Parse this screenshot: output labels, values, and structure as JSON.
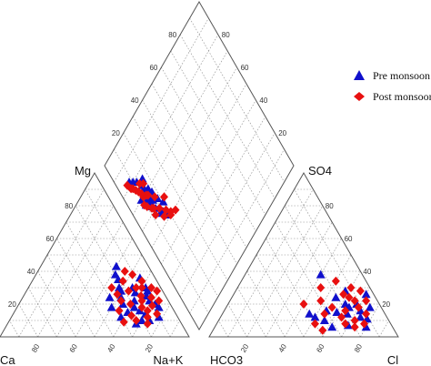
{
  "chart_data": {
    "type": "scatter",
    "subtype": "piper-diagram",
    "axis_names": {
      "mg": "Mg",
      "so4": "SO4",
      "ca": "Ca",
      "nak": "Na+K",
      "hco3": "HCO3",
      "cl": "Cl"
    },
    "ticks": {
      "cation_left": [
        "20",
        "40",
        "60",
        "80"
      ],
      "cation_bottom": [
        "80",
        "60",
        "40",
        "20"
      ],
      "anion_right": [
        "20",
        "40",
        "60",
        "80"
      ],
      "anion_bottom": [
        "20",
        "40",
        "60",
        "80"
      ],
      "diamond_left": [
        "20",
        "40",
        "60",
        "80"
      ],
      "diamond_right": [
        "20",
        "40",
        "60",
        "80"
      ]
    },
    "grid": true,
    "legend_position": "top-right",
    "series": [
      {
        "name": "Pre monsoon",
        "color": "#1010cc",
        "marker": "triangle",
        "cations": [
          [
            78,
            12
          ],
          [
            65,
            25
          ],
          [
            60,
            22
          ],
          [
            55,
            30
          ],
          [
            50,
            28
          ],
          [
            62,
            18
          ],
          [
            40,
            43
          ],
          [
            70,
            10
          ],
          [
            45,
            35
          ],
          [
            58,
            27
          ],
          [
            72,
            20
          ],
          [
            52,
            24
          ],
          [
            66,
            16
          ],
          [
            48,
            30
          ],
          [
            60,
            15
          ],
          [
            75,
            18
          ],
          [
            55,
            20
          ],
          [
            68,
            22
          ],
          [
            42,
            38
          ],
          [
            64,
            28
          ],
          [
            58,
            12
          ],
          [
            70,
            14
          ],
          [
            50,
            18
          ],
          [
            62,
            30
          ],
          [
            56,
            36
          ],
          [
            68,
            8
          ],
          [
            74,
            10
          ],
          [
            46,
            24
          ]
        ],
        "anions": [
          [
            70,
            7
          ],
          [
            78,
            11
          ],
          [
            65,
            18
          ],
          [
            55,
            24
          ],
          [
            50,
            12
          ],
          [
            60,
            15
          ],
          [
            72,
            16
          ],
          [
            40,
            38
          ],
          [
            68,
            20
          ],
          [
            62,
            6
          ],
          [
            74,
            12
          ],
          [
            58,
            28
          ],
          [
            66,
            14
          ],
          [
            54,
            16
          ],
          [
            80,
            6
          ],
          [
            62,
            20
          ],
          [
            46,
            14
          ],
          [
            70,
            26
          ],
          [
            56,
            10
          ],
          [
            76,
            18
          ]
        ],
        "diamond": [
          [
            18,
            48
          ],
          [
            17,
            45
          ],
          [
            15,
            44
          ],
          [
            14,
            40
          ],
          [
            13,
            38
          ],
          [
            12,
            36
          ],
          [
            10,
            34
          ],
          [
            11,
            33
          ],
          [
            20,
            42
          ],
          [
            13,
            28
          ],
          [
            16,
            30
          ],
          [
            14,
            26
          ],
          [
            12,
            22
          ],
          [
            10,
            20
          ],
          [
            17,
            33
          ],
          [
            9,
            30
          ],
          [
            18,
            38
          ],
          [
            14,
            34
          ],
          [
            16,
            24
          ],
          [
            8,
            18
          ],
          [
            12,
            28
          ],
          [
            15,
            36
          ]
        ]
      },
      {
        "name": "Post monsoon",
        "color": "#e81010",
        "marker": "diamond",
        "cations": [
          [
            74,
            8
          ],
          [
            66,
            18
          ],
          [
            62,
            25
          ],
          [
            57,
            30
          ],
          [
            51,
            38
          ],
          [
            64,
            22
          ],
          [
            70,
            16
          ],
          [
            48,
            34
          ],
          [
            59,
            20
          ],
          [
            72,
            12
          ],
          [
            54,
            28
          ],
          [
            68,
            24
          ],
          [
            44,
            30
          ],
          [
            63,
            13
          ],
          [
            76,
            14
          ],
          [
            53,
            22
          ],
          [
            67,
            10
          ],
          [
            58,
            34
          ],
          [
            71,
            19
          ],
          [
            49,
            26
          ],
          [
            60,
            30
          ],
          [
            55,
            16
          ],
          [
            65,
            30
          ],
          [
            73,
            22
          ],
          [
            46,
            40
          ],
          [
            61,
            9
          ],
          [
            69,
            28
          ]
        ],
        "anions": [
          [
            72,
            10
          ],
          [
            76,
            14
          ],
          [
            66,
            22
          ],
          [
            58,
            26
          ],
          [
            52,
            8
          ],
          [
            64,
            12
          ],
          [
            70,
            18
          ],
          [
            44,
            30
          ],
          [
            62,
            24
          ],
          [
            68,
            8
          ],
          [
            74,
            6
          ],
          [
            56,
            18
          ],
          [
            60,
            30
          ],
          [
            48,
            22
          ],
          [
            78,
            8
          ],
          [
            66,
            28
          ],
          [
            54,
            14
          ],
          [
            72,
            22
          ],
          [
            50,
            34
          ],
          [
            64,
            16
          ],
          [
            40,
            20
          ],
          [
            58,
            4
          ]
        ],
        "diamond": [
          [
            24,
            51
          ],
          [
            21,
            49
          ],
          [
            19,
            46
          ],
          [
            20,
            50
          ],
          [
            16,
            47
          ],
          [
            22,
            41
          ],
          [
            16,
            42
          ],
          [
            13,
            39
          ],
          [
            12,
            38
          ],
          [
            10,
            35
          ],
          [
            11,
            30
          ],
          [
            13,
            31
          ],
          [
            9,
            33
          ],
          [
            11,
            28
          ],
          [
            10,
            26
          ],
          [
            8,
            22
          ],
          [
            7,
            21
          ],
          [
            9,
            24
          ],
          [
            14,
            32
          ],
          [
            17,
            36
          ],
          [
            15,
            26
          ],
          [
            6,
            18
          ],
          [
            13,
            24
          ],
          [
            12,
            42
          ]
        ]
      }
    ]
  },
  "legend": {
    "items": [
      {
        "label": "Pre monsoon",
        "color": "#1010cc",
        "marker": "triangle"
      },
      {
        "label": "Post monsoon",
        "color": "#e81010",
        "marker": "diamond"
      }
    ]
  }
}
